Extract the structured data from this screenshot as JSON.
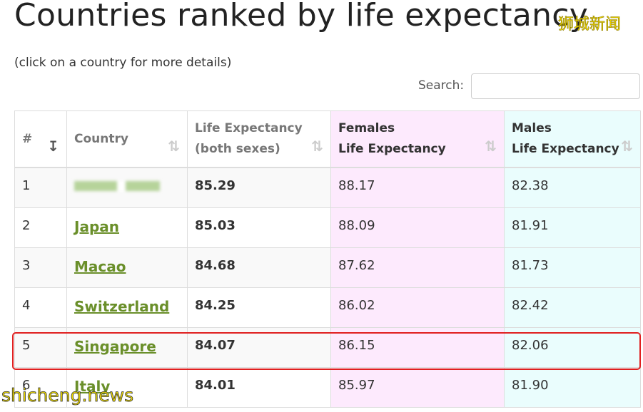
{
  "header": {
    "title": "Countries ranked by life expectancy",
    "subtitle": "(click on a country for more details)",
    "search_label": "Search:"
  },
  "watermarks": {
    "top": "狮城新闻",
    "bottom": "shicheng.news"
  },
  "table": {
    "columns": [
      [
        "#"
      ],
      [
        "Country"
      ],
      [
        "Life Expectancy",
        "(both sexes)"
      ],
      [
        "Females",
        "Life Expectancy"
      ],
      [
        "Males",
        "Life Expectancy"
      ]
    ],
    "rows": [
      [
        "1",
        null,
        "85.29",
        "88.17",
        "82.38"
      ],
      [
        "2",
        "Japan",
        "85.03",
        "88.09",
        "81.91"
      ],
      [
        "3",
        "Macao",
        "84.68",
        "87.62",
        "81.73"
      ],
      [
        "4",
        "Switzerland",
        "84.25",
        "86.02",
        "82.42"
      ],
      [
        "5",
        "Singapore",
        "84.07",
        "86.15",
        "82.06"
      ],
      [
        "6",
        "Italy",
        "84.01",
        "85.97",
        "81.90"
      ]
    ]
  }
}
